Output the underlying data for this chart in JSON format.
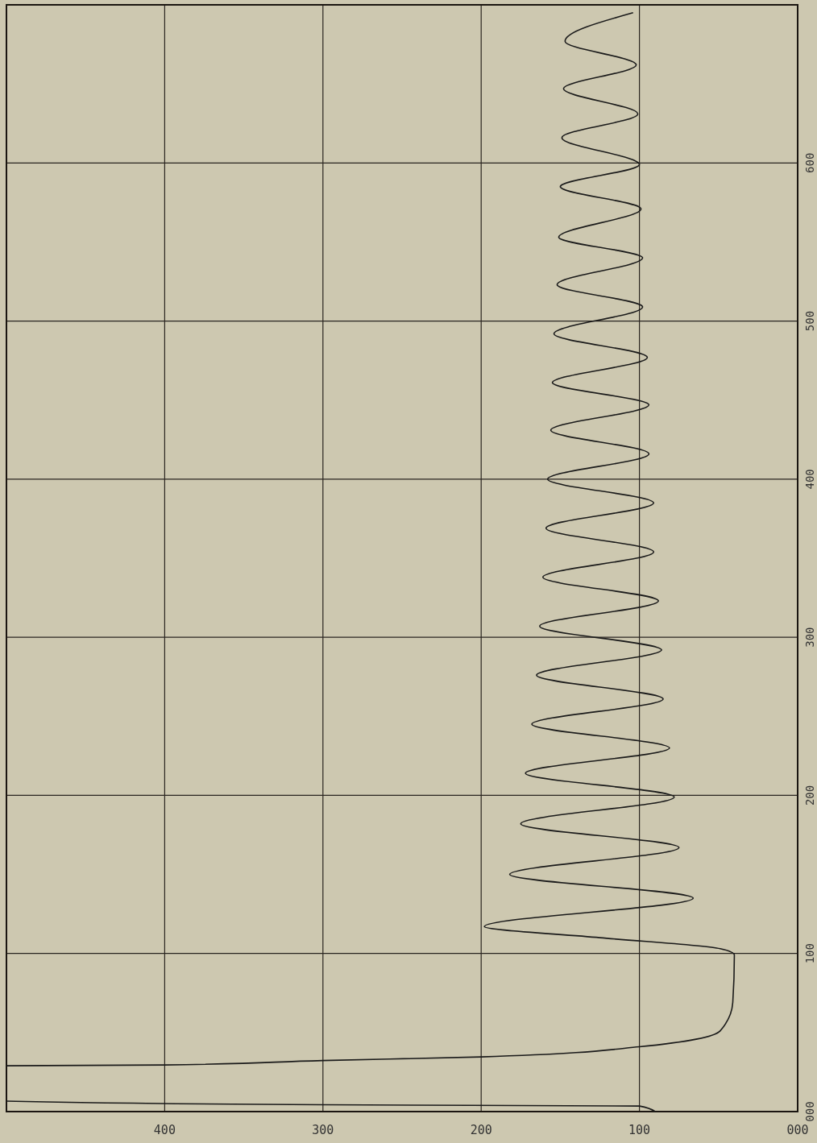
{
  "chart_data": {
    "type": "line",
    "orientation": "horizontal",
    "grid": true,
    "x": [
      0,
      3.5,
      4.3,
      6.6,
      18,
      29,
      29.5,
      32.3,
      34.6,
      41,
      51,
      69,
      99,
      103,
      110,
      117,
      135,
      150,
      167,
      182,
      199,
      214,
      230,
      245,
      261,
      276,
      292,
      307,
      323,
      338,
      354,
      369,
      385,
      400,
      416,
      431,
      447,
      461,
      477,
      492,
      509,
      523,
      540,
      553,
      571,
      585,
      599,
      616,
      631,
      647,
      662,
      677,
      695
    ],
    "series": [
      {
        "color": "#1a1a1a",
        "values": [
          90,
          100,
          300,
          500,
          null,
          500,
          400,
          300,
          200,
          100,
          49,
          41,
          40,
          49,
          125,
          198,
          66,
          182,
          75,
          175,
          78,
          172,
          81,
          168,
          85,
          165,
          86,
          163,
          88,
          161,
          91,
          159,
          91,
          158,
          94,
          156,
          94,
          155,
          95,
          154,
          98,
          152,
          98,
          151,
          99,
          150,
          100,
          149,
          101,
          148,
          102,
          147,
          104
        ]
      }
    ],
    "xlim": [
      500,
      0
    ],
    "xticks": [
      400,
      300,
      200,
      100,
      {
        "value": 0,
        "label": "000"
      }
    ],
    "ylim": [
      0,
      700
    ],
    "yticks": [
      {
        "value": 0,
        "label": "000"
      },
      100,
      200,
      300,
      400,
      500,
      600
    ]
  }
}
